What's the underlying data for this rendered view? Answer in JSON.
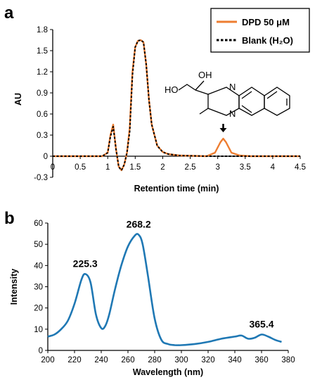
{
  "colors": {
    "dpd": "#ED7D31",
    "blank": "#000000",
    "spectrum": "#1F78B4",
    "axis": "#000000"
  },
  "panels": {
    "a_label": "a",
    "b_label": "b"
  },
  "chart_data": [
    {
      "type": "line",
      "title": "",
      "xlabel": "Retention time (min)",
      "ylabel": "AU",
      "xlim": [
        0,
        4.5
      ],
      "ylim": [
        -0.3,
        1.8
      ],
      "xticks": [
        "0",
        "0.5",
        "1",
        "1.5",
        "2",
        "2.5",
        "3",
        "3.5",
        "4",
        "4.5"
      ],
      "yticks": [
        "-0.3",
        "0",
        "0.3",
        "0.6",
        "0.9",
        "1.2",
        "1.5",
        "1.8"
      ],
      "legend": {
        "placement": "top-right",
        "entries": [
          "DPD 50 μM",
          "Blank (H₂O)"
        ]
      },
      "annotation": {
        "molecule": "product structure",
        "arrow_points_to_x": 3.1
      },
      "series": [
        {
          "name": "DPD 50 μM",
          "style": "solid",
          "x": [
            0,
            0.9,
            1.0,
            1.05,
            1.1,
            1.15,
            1.2,
            1.25,
            1.3,
            1.35,
            1.4,
            1.45,
            1.5,
            1.55,
            1.6,
            1.65,
            1.7,
            1.75,
            1.8,
            1.9,
            2.0,
            2.1,
            2.3,
            2.8,
            2.95,
            3.05,
            3.1,
            3.15,
            3.25,
            3.4,
            3.6,
            4.0,
            4.5
          ],
          "y": [
            0,
            0,
            0.05,
            0.3,
            0.45,
            0.1,
            -0.15,
            -0.2,
            -0.12,
            0.05,
            0.4,
            1.2,
            1.55,
            1.64,
            1.65,
            1.62,
            1.3,
            0.8,
            0.45,
            0.15,
            0.06,
            0.03,
            0.01,
            0,
            0.05,
            0.2,
            0.25,
            0.2,
            0.05,
            0.01,
            0,
            0,
            0
          ]
        },
        {
          "name": "Blank (H₂O)",
          "style": "dashed",
          "x": [
            0,
            0.9,
            1.0,
            1.05,
            1.1,
            1.15,
            1.2,
            1.25,
            1.3,
            1.35,
            1.4,
            1.45,
            1.5,
            1.55,
            1.6,
            1.65,
            1.7,
            1.75,
            1.8,
            1.9,
            2.0,
            2.1,
            2.3,
            2.8,
            3.0,
            4.5
          ],
          "y": [
            0,
            0,
            0.05,
            0.28,
            0.42,
            0.1,
            -0.15,
            -0.2,
            -0.12,
            0.05,
            0.35,
            1.15,
            1.55,
            1.64,
            1.65,
            1.62,
            1.3,
            0.8,
            0.45,
            0.15,
            0.06,
            0.03,
            0.01,
            0,
            0,
            0
          ]
        }
      ]
    },
    {
      "type": "line",
      "title": "",
      "xlabel": "Wavelength (nm)",
      "ylabel": "Intensity",
      "xlim": [
        200,
        380
      ],
      "ylim": [
        0,
        60
      ],
      "xticks": [
        "200",
        "220",
        "240",
        "260",
        "280",
        "300",
        "320",
        "340",
        "360",
        "380"
      ],
      "yticks": [
        "0",
        "10",
        "20",
        "30",
        "40",
        "50",
        "60"
      ],
      "annotations": [
        {
          "text": "225.3",
          "x": 228,
          "y": 36
        },
        {
          "text": "268.2",
          "x": 268,
          "y": 54.5
        },
        {
          "text": "365.4",
          "x": 360,
          "y": 7.5
        }
      ],
      "series": [
        {
          "name": "",
          "x": [
            200,
            205,
            210,
            215,
            220,
            225,
            228,
            232,
            236,
            240,
            243,
            246,
            250,
            255,
            260,
            265,
            268,
            271,
            275,
            280,
            285,
            290,
            295,
            300,
            310,
            320,
            330,
            340,
            345,
            350,
            355,
            360,
            365,
            370,
            375
          ],
          "y": [
            6.5,
            7.5,
            10,
            14,
            22,
            33,
            36,
            32,
            17,
            10.5,
            11.5,
            17,
            28,
            40,
            49,
            54,
            54.5,
            50,
            35,
            15,
            5,
            3,
            2.5,
            2.5,
            3,
            4,
            5.5,
            6.5,
            7,
            5.5,
            6,
            7.5,
            6.5,
            5,
            4
          ]
        }
      ]
    }
  ]
}
